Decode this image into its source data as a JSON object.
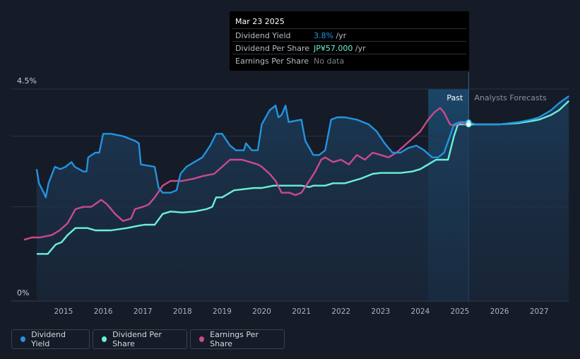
{
  "tooltip": {
    "date": "Mar 23 2025",
    "rows": [
      {
        "label": "Dividend Yield",
        "value": "3.8%",
        "unit": "/yr"
      },
      {
        "label": "Dividend Per Share",
        "value": "JP¥57.000",
        "unit": "/yr"
      },
      {
        "label": "Earnings Per Share",
        "value": "No data",
        "unit": ""
      }
    ]
  },
  "legend": [
    {
      "label": "Dividend Yield",
      "color": "#2394df"
    },
    {
      "label": "Dividend Per Share",
      "color": "#6cf0d8"
    },
    {
      "label": "Earnings Per Share",
      "color": "#c94a8e"
    }
  ],
  "chart_data": {
    "type": "line",
    "ylim": [
      0,
      4.5
    ],
    "y_ticks": [
      {
        "value": 4.5,
        "label": "4.5%"
      },
      {
        "value": 0,
        "label": "0%"
      }
    ],
    "x_ticks": [
      "2015",
      "2016",
      "2017",
      "2018",
      "2019",
      "2020",
      "2021",
      "2022",
      "2023",
      "2024",
      "2025",
      "2026",
      "2027"
    ],
    "x_range": [
      2014.0,
      2027.75
    ],
    "past_label": "Past",
    "forecast_label": "Analysts Forecasts",
    "forecast_shade_start": 2024.2,
    "divider_x": 2025.22,
    "grid": true,
    "legend_position": "bottom-left",
    "series": [
      {
        "name": "Dividend Yield",
        "color": "#2394df",
        "points": [
          [
            2014.32,
            2.8
          ],
          [
            2014.38,
            2.5
          ],
          [
            2014.5,
            2.3
          ],
          [
            2014.55,
            2.2
          ],
          [
            2014.62,
            2.5
          ],
          [
            2014.78,
            2.85
          ],
          [
            2014.92,
            2.8
          ],
          [
            2015.05,
            2.85
          ],
          [
            2015.2,
            2.95
          ],
          [
            2015.28,
            2.85
          ],
          [
            2015.5,
            2.75
          ],
          [
            2015.58,
            2.75
          ],
          [
            2015.62,
            3.05
          ],
          [
            2015.8,
            3.15
          ],
          [
            2015.9,
            3.15
          ],
          [
            2016.0,
            3.55
          ],
          [
            2016.2,
            3.55
          ],
          [
            2016.5,
            3.5
          ],
          [
            2016.8,
            3.4
          ],
          [
            2016.9,
            3.35
          ],
          [
            2016.95,
            2.9
          ],
          [
            2017.3,
            2.85
          ],
          [
            2017.4,
            2.4
          ],
          [
            2017.5,
            2.3
          ],
          [
            2017.7,
            2.3
          ],
          [
            2017.85,
            2.35
          ],
          [
            2017.95,
            2.7
          ],
          [
            2018.1,
            2.85
          ],
          [
            2018.3,
            2.95
          ],
          [
            2018.5,
            3.05
          ],
          [
            2018.7,
            3.3
          ],
          [
            2018.85,
            3.55
          ],
          [
            2019.0,
            3.55
          ],
          [
            2019.2,
            3.3
          ],
          [
            2019.35,
            3.2
          ],
          [
            2019.55,
            3.2
          ],
          [
            2019.6,
            3.35
          ],
          [
            2019.75,
            3.2
          ],
          [
            2019.9,
            3.2
          ],
          [
            2020.0,
            3.75
          ],
          [
            2020.2,
            4.05
          ],
          [
            2020.35,
            4.15
          ],
          [
            2020.42,
            3.9
          ],
          [
            2020.5,
            3.95
          ],
          [
            2020.6,
            4.15
          ],
          [
            2020.68,
            3.8
          ],
          [
            2021.0,
            3.85
          ],
          [
            2021.1,
            3.4
          ],
          [
            2021.3,
            3.1
          ],
          [
            2021.45,
            3.1
          ],
          [
            2021.6,
            3.2
          ],
          [
            2021.75,
            3.85
          ],
          [
            2021.9,
            3.9
          ],
          [
            2022.1,
            3.9
          ],
          [
            2022.4,
            3.85
          ],
          [
            2022.7,
            3.75
          ],
          [
            2022.9,
            3.6
          ],
          [
            2023.1,
            3.35
          ],
          [
            2023.3,
            3.15
          ],
          [
            2023.5,
            3.15
          ],
          [
            2023.7,
            3.25
          ],
          [
            2023.9,
            3.3
          ],
          [
            2024.1,
            3.2
          ],
          [
            2024.3,
            3.05
          ],
          [
            2024.45,
            3.05
          ],
          [
            2024.6,
            3.15
          ],
          [
            2024.75,
            3.5
          ],
          [
            2024.85,
            3.75
          ],
          [
            2025.0,
            3.8
          ],
          [
            2025.2,
            3.8
          ],
          [
            2025.4,
            3.75
          ],
          [
            2025.6,
            3.75
          ],
          [
            2026.0,
            3.75
          ],
          [
            2026.5,
            3.8
          ],
          [
            2026.8,
            3.85
          ],
          [
            2027.0,
            3.9
          ],
          [
            2027.3,
            4.05
          ],
          [
            2027.5,
            4.2
          ],
          [
            2027.75,
            4.35
          ]
        ]
      },
      {
        "name": "Dividend Per Share",
        "color": "#6cf0d8",
        "points": [
          [
            2014.32,
            1.0
          ],
          [
            2014.6,
            1.0
          ],
          [
            2014.8,
            1.2
          ],
          [
            2014.95,
            1.25
          ],
          [
            2015.1,
            1.4
          ],
          [
            2015.3,
            1.55
          ],
          [
            2015.6,
            1.55
          ],
          [
            2015.8,
            1.5
          ],
          [
            2016.2,
            1.5
          ],
          [
            2016.6,
            1.55
          ],
          [
            2016.9,
            1.6
          ],
          [
            2017.05,
            1.62
          ],
          [
            2017.3,
            1.62
          ],
          [
            2017.5,
            1.85
          ],
          [
            2017.7,
            1.9
          ],
          [
            2018.0,
            1.88
          ],
          [
            2018.3,
            1.9
          ],
          [
            2018.6,
            1.95
          ],
          [
            2018.75,
            2.0
          ],
          [
            2018.85,
            2.2
          ],
          [
            2019.0,
            2.2
          ],
          [
            2019.3,
            2.35
          ],
          [
            2019.6,
            2.38
          ],
          [
            2019.8,
            2.4
          ],
          [
            2020.0,
            2.4
          ],
          [
            2020.3,
            2.45
          ],
          [
            2020.5,
            2.45
          ],
          [
            2021.0,
            2.45
          ],
          [
            2021.2,
            2.42
          ],
          [
            2021.3,
            2.45
          ],
          [
            2021.6,
            2.45
          ],
          [
            2021.8,
            2.5
          ],
          [
            2022.1,
            2.5
          ],
          [
            2022.3,
            2.55
          ],
          [
            2022.5,
            2.6
          ],
          [
            2022.8,
            2.7
          ],
          [
            2023.0,
            2.72
          ],
          [
            2023.5,
            2.72
          ],
          [
            2023.8,
            2.75
          ],
          [
            2024.0,
            2.8
          ],
          [
            2024.2,
            2.9
          ],
          [
            2024.4,
            3.0
          ],
          [
            2024.6,
            3.0
          ],
          [
            2024.7,
            3.0
          ],
          [
            2024.85,
            3.5
          ],
          [
            2024.95,
            3.75
          ],
          [
            2025.2,
            3.75
          ],
          [
            2025.5,
            3.75
          ],
          [
            2026.0,
            3.75
          ],
          [
            2026.5,
            3.78
          ],
          [
            2026.8,
            3.82
          ],
          [
            2027.0,
            3.85
          ],
          [
            2027.3,
            3.95
          ],
          [
            2027.5,
            4.05
          ],
          [
            2027.75,
            4.25
          ]
        ]
      },
      {
        "name": "Earnings Per Share",
        "color": "#c94a8e",
        "points": [
          [
            2014.0,
            1.3
          ],
          [
            2014.2,
            1.35
          ],
          [
            2014.4,
            1.35
          ],
          [
            2014.7,
            1.4
          ],
          [
            2014.9,
            1.5
          ],
          [
            2015.1,
            1.65
          ],
          [
            2015.3,
            1.95
          ],
          [
            2015.5,
            2.0
          ],
          [
            2015.7,
            2.0
          ],
          [
            2015.95,
            2.15
          ],
          [
            2016.1,
            2.05
          ],
          [
            2016.3,
            1.85
          ],
          [
            2016.5,
            1.7
          ],
          [
            2016.7,
            1.75
          ],
          [
            2016.8,
            1.95
          ],
          [
            2017.0,
            2.0
          ],
          [
            2017.15,
            2.05
          ],
          [
            2017.3,
            2.2
          ],
          [
            2017.5,
            2.45
          ],
          [
            2017.7,
            2.55
          ],
          [
            2018.0,
            2.55
          ],
          [
            2018.3,
            2.6
          ],
          [
            2018.5,
            2.65
          ],
          [
            2018.8,
            2.7
          ],
          [
            2019.0,
            2.85
          ],
          [
            2019.2,
            3.0
          ],
          [
            2019.5,
            3.0
          ],
          [
            2019.7,
            2.95
          ],
          [
            2019.9,
            2.9
          ],
          [
            2020.0,
            2.85
          ],
          [
            2020.2,
            2.7
          ],
          [
            2020.35,
            2.55
          ],
          [
            2020.5,
            2.3
          ],
          [
            2020.7,
            2.3
          ],
          [
            2020.85,
            2.25
          ],
          [
            2021.0,
            2.3
          ],
          [
            2021.2,
            2.55
          ],
          [
            2021.35,
            2.75
          ],
          [
            2021.5,
            3.0
          ],
          [
            2021.6,
            3.05
          ],
          [
            2021.8,
            2.95
          ],
          [
            2022.0,
            3.0
          ],
          [
            2022.2,
            2.9
          ],
          [
            2022.4,
            3.1
          ],
          [
            2022.6,
            3.0
          ],
          [
            2022.8,
            3.15
          ],
          [
            2023.0,
            3.1
          ],
          [
            2023.2,
            3.05
          ],
          [
            2023.4,
            3.15
          ],
          [
            2023.6,
            3.3
          ],
          [
            2023.8,
            3.45
          ],
          [
            2024.0,
            3.6
          ],
          [
            2024.2,
            3.85
          ],
          [
            2024.35,
            4.0
          ],
          [
            2024.5,
            4.1
          ],
          [
            2024.6,
            4.0
          ],
          [
            2024.75,
            3.75
          ],
          [
            2024.85,
            3.72
          ],
          [
            2025.0,
            3.78
          ],
          [
            2025.2,
            3.75
          ]
        ]
      }
    ]
  }
}
